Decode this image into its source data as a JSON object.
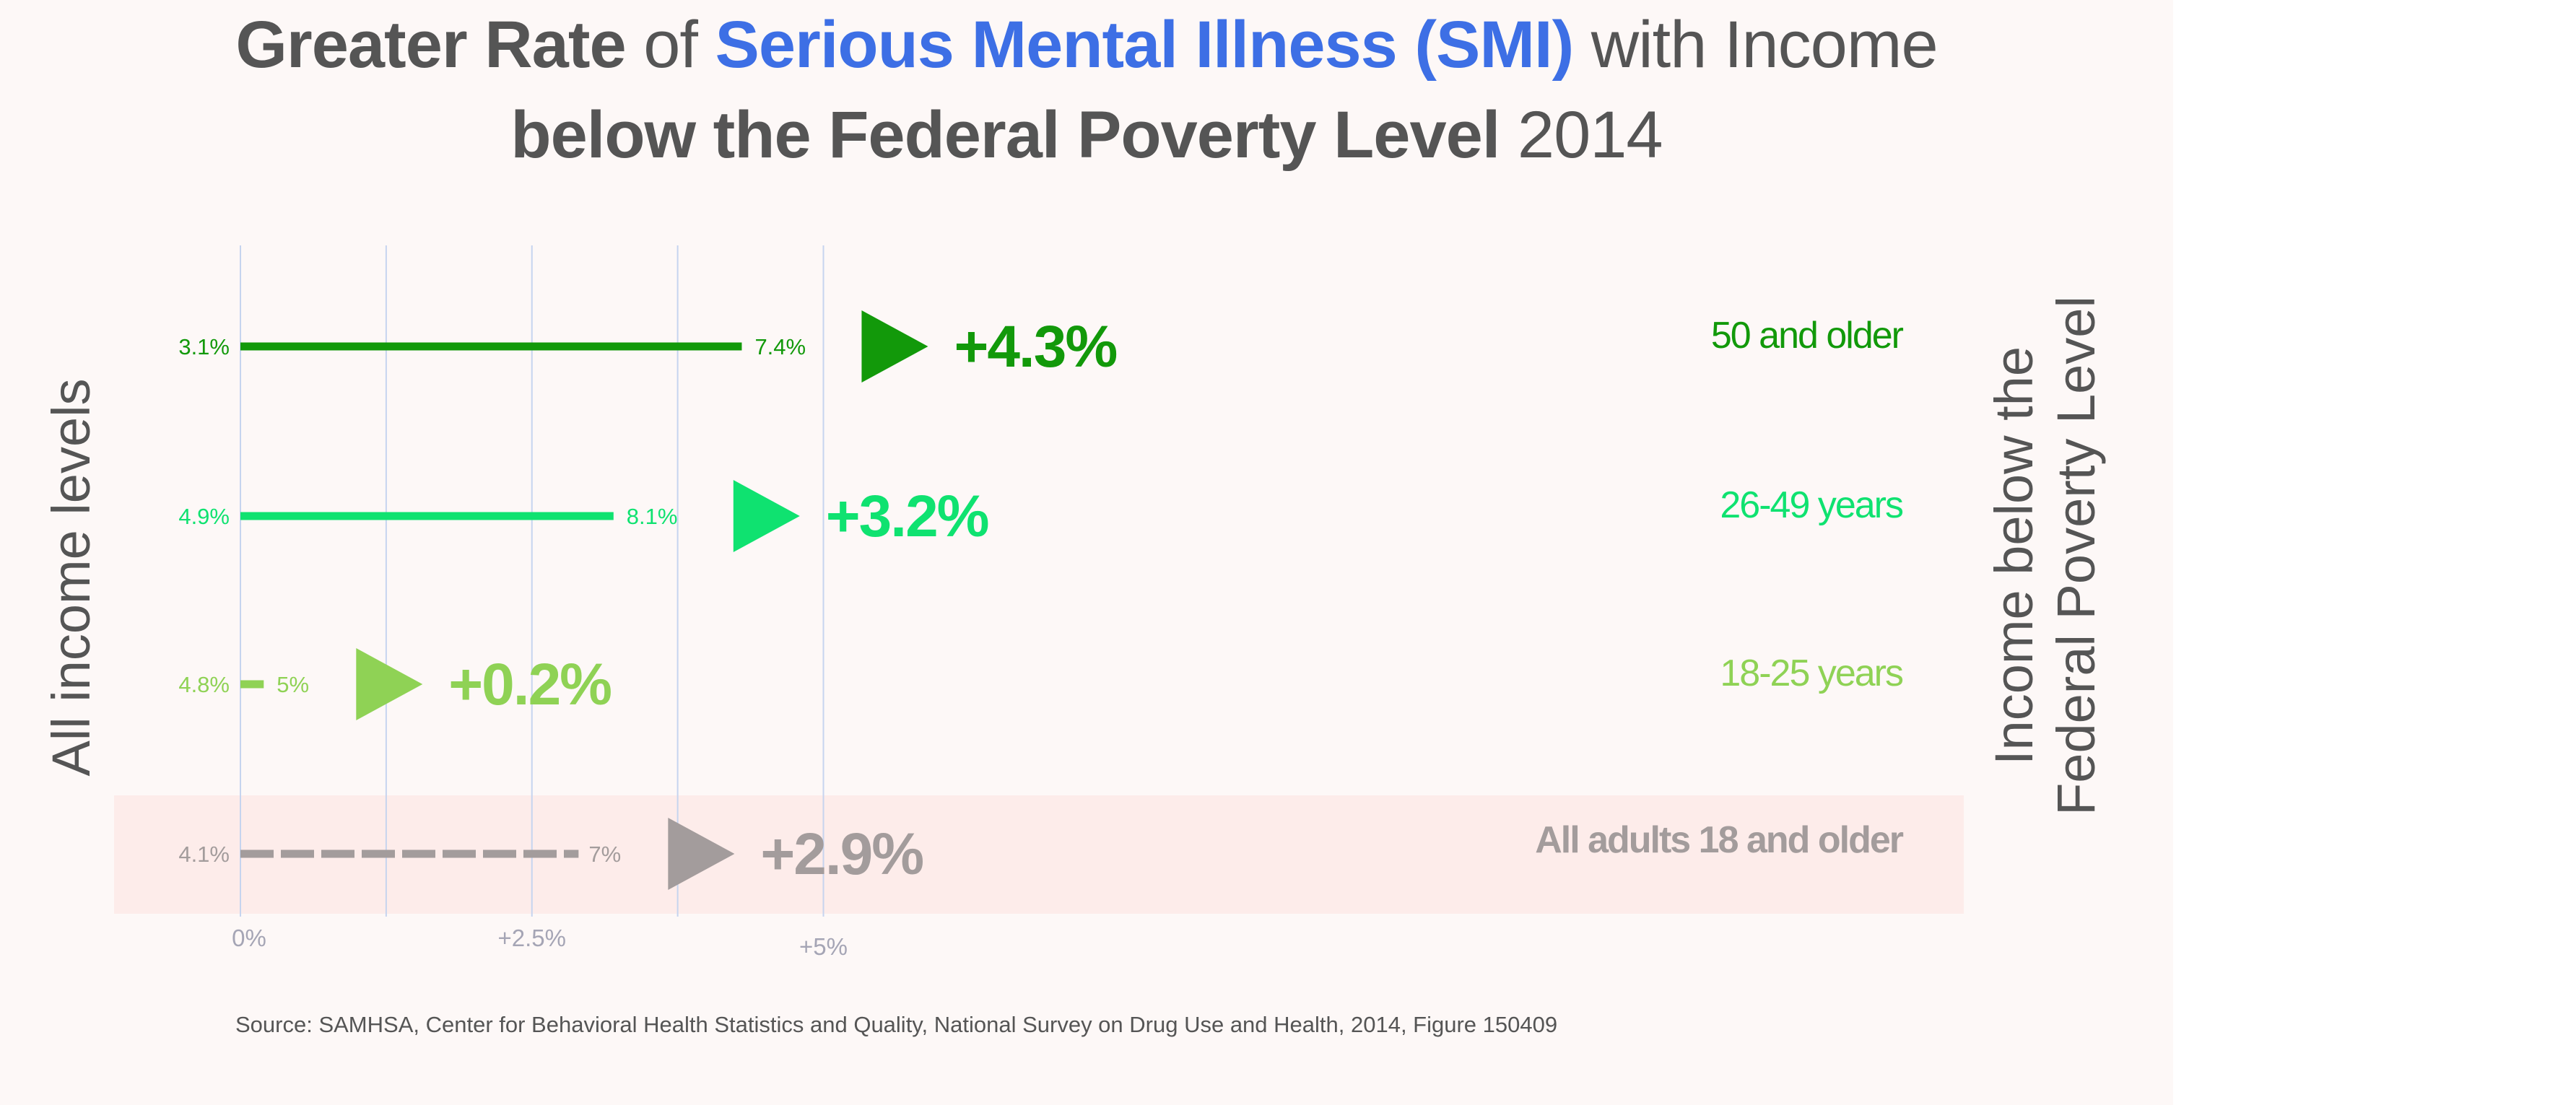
{
  "title": {
    "line1": {
      "part1": "Greater Rate",
      "part2": " of ",
      "part3": "Serious Mental Illness (SMI)",
      "part4": " with Income"
    },
    "line2": {
      "part1": "below the Federal Poverty Level",
      "part2": " 2014"
    }
  },
  "colors": {
    "background": "#fdf8f7",
    "accent": "#3d6fe5",
    "title_text": "#555555",
    "gridline": "#c6d4ef",
    "highlight_band": "#fdecea"
  },
  "chart_data": {
    "type": "bar",
    "title": "Greater Rate of Serious Mental Illness (SMI) with Income below the Federal Poverty Level 2014",
    "ylabel_left": "All income levels",
    "ylabel_right": "Income below the Federal Poverty Level",
    "x_ticks": [
      "0%",
      "+2.5%",
      "+5%"
    ],
    "grid": true,
    "series": [
      {
        "name": "50 and older",
        "start_label": "3.1%",
        "end_label": "7.4%",
        "change_label": "+4.3%",
        "start": 3.1,
        "end": 7.4,
        "change": 4.3,
        "color": "#12990a",
        "dashed": false
      },
      {
        "name": "26-49 years",
        "start_label": "4.9%",
        "end_label": "8.1%",
        "change_label": "+3.2%",
        "start": 4.9,
        "end": 8.1,
        "change": 3.2,
        "color": "#0fe270",
        "dashed": false
      },
      {
        "name": "18-25 years",
        "start_label": "4.8%",
        "end_label": "5%",
        "change_label": "+0.2%",
        "start": 4.8,
        "end": 5.0,
        "change": 0.2,
        "color": "#8fd255",
        "dashed": false
      },
      {
        "name": "All adults 18 and older",
        "start_label": "4.1%",
        "end_label": "7%",
        "change_label": "+2.9%",
        "start": 4.1,
        "end": 7.0,
        "change": 2.9,
        "color": "#a39c9c",
        "dashed": true
      }
    ]
  },
  "source": "Source: SAMHSA, Center for Behavioral Health Statistics and Quality, National Survey on Drug Use and Health, 2014, Figure 150409"
}
